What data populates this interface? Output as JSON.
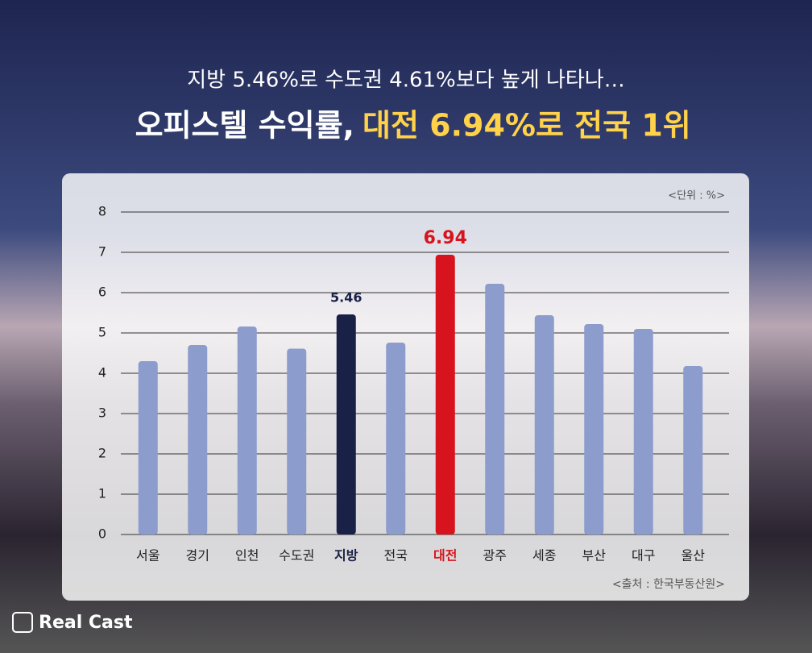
{
  "chart_data": {
    "type": "bar",
    "subtitle": "지방 5.46%로 수도권 4.61%보다 높게 나타나…",
    "title": "오피스텔 수익률,",
    "title_highlight": "대전 6.94%로 전국 1위",
    "unit": "<단위 : %>",
    "source": "<출처 : 한국부동산원>",
    "logo": "Real Cast",
    "categories": [
      "서울",
      "경기",
      "인천",
      "수도권",
      "지방",
      "전국",
      "대전",
      "광주",
      "세종",
      "부산",
      "대구",
      "울산"
    ],
    "values": [
      4.3,
      4.7,
      5.16,
      4.61,
      5.46,
      4.76,
      6.94,
      6.22,
      5.44,
      5.22,
      5.1,
      4.18
    ],
    "value_labels": [
      null,
      null,
      null,
      null,
      "5.46",
      null,
      "6.94",
      null,
      null,
      null,
      null,
      null
    ],
    "color": "#8c9ccc",
    "colors": [
      "#8c9ccc",
      "#8c9ccc",
      "#8c9ccc",
      "#8c9ccc",
      "#1a2147",
      "#8c9ccc",
      "#d7141d",
      "#8c9ccc",
      "#8c9ccc",
      "#8c9ccc",
      "#8c9ccc",
      "#8c9ccc"
    ],
    "ylim": [
      0,
      8
    ],
    "yticks": [
      0,
      1,
      2,
      3,
      4,
      5,
      6,
      7,
      8
    ],
    "grid": true
  }
}
